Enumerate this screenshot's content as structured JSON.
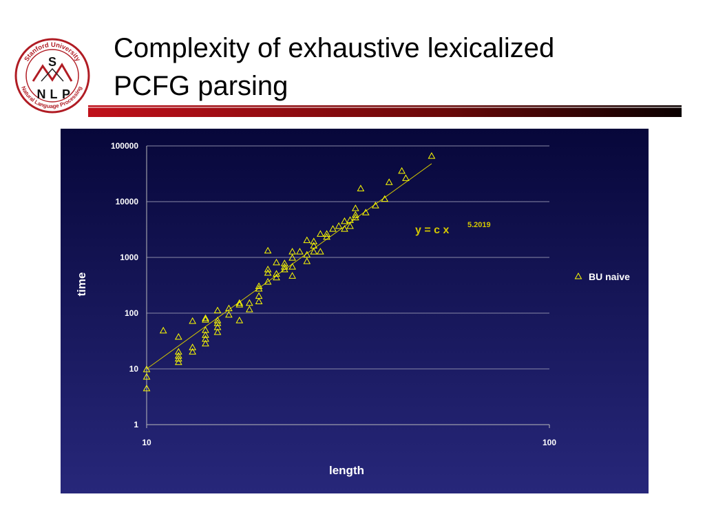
{
  "slide": {
    "title_lines": [
      "Complexity of exhaustive lexicalized",
      "PCFG parsing"
    ],
    "logo": {
      "top": "Stanford University",
      "bottom": "Natural Language Processing",
      "letters": [
        "S",
        "N",
        "L",
        "P"
      ]
    }
  },
  "chart_data": {
    "type": "scatter",
    "x_label": "length",
    "y_label": "time",
    "log_x": true,
    "log_y": true,
    "grid": true,
    "legend": "right",
    "xlim": [
      10,
      100
    ],
    "xticks": [
      10,
      100
    ],
    "ylim": [
      1,
      100000
    ],
    "yticks": [
      1,
      10,
      100,
      1000,
      10000,
      100000
    ],
    "x": [
      10,
      10,
      10,
      11,
      12,
      12,
      12,
      12,
      12,
      13,
      13,
      13,
      14,
      14,
      14,
      14,
      14,
      14,
      15,
      15,
      15,
      15,
      15,
      16,
      16,
      17,
      17,
      17,
      18,
      18,
      19,
      19,
      19,
      19,
      20,
      20,
      20,
      20,
      21,
      21,
      21,
      22,
      22,
      22,
      23,
      23,
      23,
      23,
      24,
      25,
      25,
      25,
      26,
      26,
      26,
      27,
      27,
      28,
      28,
      29,
      30,
      31,
      31,
      32,
      32,
      33,
      33,
      33,
      34,
      35,
      37,
      39,
      40,
      43,
      44,
      51
    ],
    "series": [
      {
        "name": "BU naive",
        "color": "#ffff00",
        "values": [
          9.7,
          7.1,
          4.4,
          48,
          37,
          20,
          17,
          15,
          13,
          71,
          24,
          20,
          80,
          75,
          49,
          40,
          34,
          28,
          110,
          73,
          65,
          55,
          45,
          120,
          92,
          150,
          140,
          73,
          150,
          115,
          300,
          270,
          200,
          160,
          1300,
          600,
          520,
          360,
          800,
          500,
          430,
          770,
          670,
          600,
          1250,
          970,
          670,
          460,
          1250,
          2000,
          1100,
          840,
          1900,
          1600,
          1250,
          2600,
          1250,
          2600,
          2300,
          3200,
          3600,
          4400,
          3200,
          4600,
          3600,
          7500,
          5700,
          5100,
          17000,
          6300,
          8400,
          11000,
          22000,
          35000,
          26000,
          65000
        ]
      }
    ],
    "fit": {
      "label": "y = c x",
      "exponent": 5.2019,
      "color": "#d4c800",
      "x": [
        10,
        51
      ],
      "y": [
        10,
        48000
      ]
    }
  }
}
